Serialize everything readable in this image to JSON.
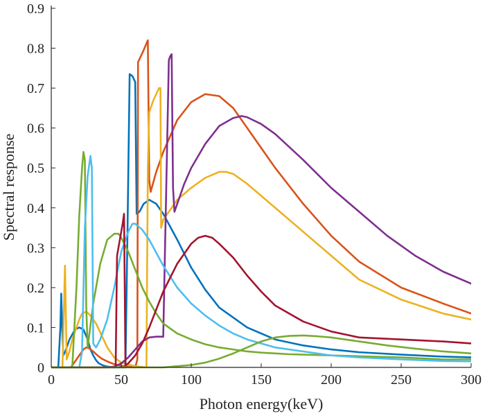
{
  "chart_data": {
    "type": "line",
    "title": "",
    "xlabel": "Photon energy(keV)",
    "ylabel": "Spectral response",
    "xlim": [
      0,
      300
    ],
    "ylim": [
      0,
      0.9
    ],
    "xticks": [
      "0",
      "50",
      "100",
      "150",
      "200",
      "250",
      "300"
    ],
    "yticks": [
      "0",
      "0.1",
      "0.2",
      "0.3",
      "0.4",
      "0.5",
      "0.6",
      "0.7",
      "0.8",
      "0.9"
    ],
    "grid": false,
    "legend": "none",
    "series": [
      {
        "color": "#0072BD",
        "x": [
          0,
          5,
          6.5,
          7.1,
          8.5,
          10,
          13,
          17,
          20,
          23,
          26,
          28,
          30,
          32,
          34,
          37,
          40,
          45,
          50,
          53,
          54.5,
          56,
          58,
          60,
          61,
          63,
          66,
          70,
          75,
          80,
          90,
          100,
          110,
          120,
          140,
          160,
          180,
          200,
          220,
          250,
          280,
          300
        ],
        "y": [
          0,
          0,
          0.1,
          0.185,
          0.03,
          0.04,
          0.07,
          0.095,
          0.1,
          0.095,
          0.07,
          0.045,
          0.03,
          0.018,
          0.01,
          0.005,
          0.002,
          0,
          0,
          0,
          0.35,
          0.735,
          0.73,
          0.715,
          0.385,
          0.39,
          0.41,
          0.42,
          0.41,
          0.385,
          0.32,
          0.25,
          0.195,
          0.15,
          0.1,
          0.07,
          0.055,
          0.045,
          0.038,
          0.032,
          0.027,
          0.025
        ]
      },
      {
        "color": "#D95319",
        "x": [
          0,
          14,
          18,
          20,
          23,
          25,
          27,
          30,
          33,
          36,
          40,
          45,
          50,
          55,
          60,
          61.5,
          62,
          66,
          69,
          70,
          71,
          75,
          80,
          90,
          100,
          110,
          120,
          130,
          140,
          160,
          180,
          200,
          220,
          250,
          280,
          300
        ],
        "y": [
          0,
          0,
          0.02,
          0.03,
          0.045,
          0.05,
          0.048,
          0.04,
          0.03,
          0.022,
          0.015,
          0.008,
          0.004,
          0.002,
          0,
          0.02,
          0.765,
          0.795,
          0.82,
          0.47,
          0.44,
          0.49,
          0.54,
          0.62,
          0.665,
          0.685,
          0.68,
          0.65,
          0.6,
          0.5,
          0.41,
          0.33,
          0.265,
          0.2,
          0.16,
          0.135
        ]
      },
      {
        "color": "#EDB120",
        "x": [
          0,
          8,
          9.8,
          11,
          13,
          15,
          18,
          20,
          22,
          25,
          28,
          32,
          36,
          40,
          45,
          50,
          60,
          68,
          69,
          70,
          73,
          75,
          77,
          78,
          78.5,
          80,
          90,
          100,
          110,
          120,
          125,
          130,
          140,
          160,
          180,
          200,
          220,
          250,
          280,
          300
        ],
        "y": [
          0,
          0,
          0.255,
          0.02,
          0.04,
          0.07,
          0.1,
          0.12,
          0.135,
          0.14,
          0.13,
          0.11,
          0.08,
          0.05,
          0.025,
          0.012,
          0.003,
          0,
          0.5,
          0.64,
          0.67,
          0.685,
          0.7,
          0.7,
          0.35,
          0.37,
          0.42,
          0.45,
          0.475,
          0.49,
          0.49,
          0.485,
          0.46,
          0.4,
          0.34,
          0.28,
          0.22,
          0.17,
          0.135,
          0.12
        ]
      },
      {
        "color": "#7E2F8E",
        "x": [
          0,
          40,
          45,
          50,
          55,
          60,
          65,
          70,
          75,
          80,
          84,
          85,
          86,
          87,
          88,
          90,
          95,
          100,
          110,
          120,
          130,
          136,
          140,
          150,
          160,
          180,
          200,
          220,
          240,
          260,
          280,
          300
        ],
        "y": [
          0,
          0,
          0.002,
          0.01,
          0.025,
          0.045,
          0.065,
          0.075,
          0.077,
          0.077,
          0.77,
          0.78,
          0.785,
          0.45,
          0.39,
          0.41,
          0.46,
          0.5,
          0.56,
          0.605,
          0.625,
          0.63,
          0.627,
          0.61,
          0.585,
          0.52,
          0.45,
          0.39,
          0.33,
          0.28,
          0.24,
          0.21
        ]
      },
      {
        "color": "#77AC30",
        "x": [
          0,
          15,
          18,
          20,
          22,
          23,
          24,
          25,
          26,
          30,
          35,
          40,
          45,
          48,
          50,
          55,
          60,
          65,
          70,
          75,
          80,
          90,
          100,
          110,
          120,
          130,
          140,
          150,
          160,
          170,
          180,
          200,
          220,
          250,
          280,
          300
        ],
        "y": [
          0,
          0,
          0.2,
          0.38,
          0.5,
          0.54,
          0.52,
          0.15,
          0.05,
          0.16,
          0.26,
          0.32,
          0.335,
          0.335,
          0.325,
          0.29,
          0.245,
          0.2,
          0.165,
          0.135,
          0.11,
          0.085,
          0.07,
          0.058,
          0.05,
          0.045,
          0.04,
          0.037,
          0.035,
          0.033,
          0.032,
          0.03,
          0.028,
          0.025,
          0.02,
          0.02
        ]
      },
      {
        "color": "#4DBEEE",
        "x": [
          0,
          20,
          22,
          24,
          26,
          28,
          29,
          30,
          32,
          35,
          40,
          45,
          50,
          55,
          58,
          60,
          65,
          70,
          80,
          90,
          100,
          110,
          120,
          130,
          140,
          160,
          180,
          200,
          220,
          250,
          280,
          300
        ],
        "y": [
          0,
          0,
          0.04,
          0.35,
          0.48,
          0.53,
          0.5,
          0.06,
          0.05,
          0.07,
          0.12,
          0.2,
          0.29,
          0.34,
          0.36,
          0.36,
          0.345,
          0.32,
          0.255,
          0.2,
          0.16,
          0.13,
          0.105,
          0.085,
          0.07,
          0.05,
          0.04,
          0.03,
          0.025,
          0.02,
          0.016,
          0.015
        ]
      },
      {
        "color": "#A2142F",
        "x": [
          0,
          46,
          47,
          48,
          49,
          51,
          52,
          52.5,
          53,
          55,
          60,
          65,
          70,
          80,
          90,
          100,
          105,
          110,
          115,
          120,
          130,
          140,
          150,
          160,
          180,
          200,
          220,
          250,
          280,
          300
        ],
        "y": [
          0,
          0,
          0.28,
          0.3,
          0.32,
          0.36,
          0.385,
          0.2,
          0.005,
          0.01,
          0.03,
          0.06,
          0.1,
          0.19,
          0.26,
          0.31,
          0.325,
          0.33,
          0.325,
          0.31,
          0.275,
          0.23,
          0.19,
          0.155,
          0.115,
          0.09,
          0.075,
          0.07,
          0.065,
          0.06
        ]
      },
      {
        "color": "#77AC30",
        "x": [
          0,
          80,
          90,
          100,
          110,
          120,
          130,
          140,
          150,
          160,
          170,
          180,
          190,
          200,
          210,
          220,
          240,
          260,
          280,
          300
        ],
        "y": [
          0,
          0,
          0.003,
          0.006,
          0.012,
          0.022,
          0.035,
          0.05,
          0.065,
          0.075,
          0.079,
          0.08,
          0.078,
          0.075,
          0.07,
          0.065,
          0.055,
          0.047,
          0.04,
          0.035
        ]
      }
    ]
  }
}
